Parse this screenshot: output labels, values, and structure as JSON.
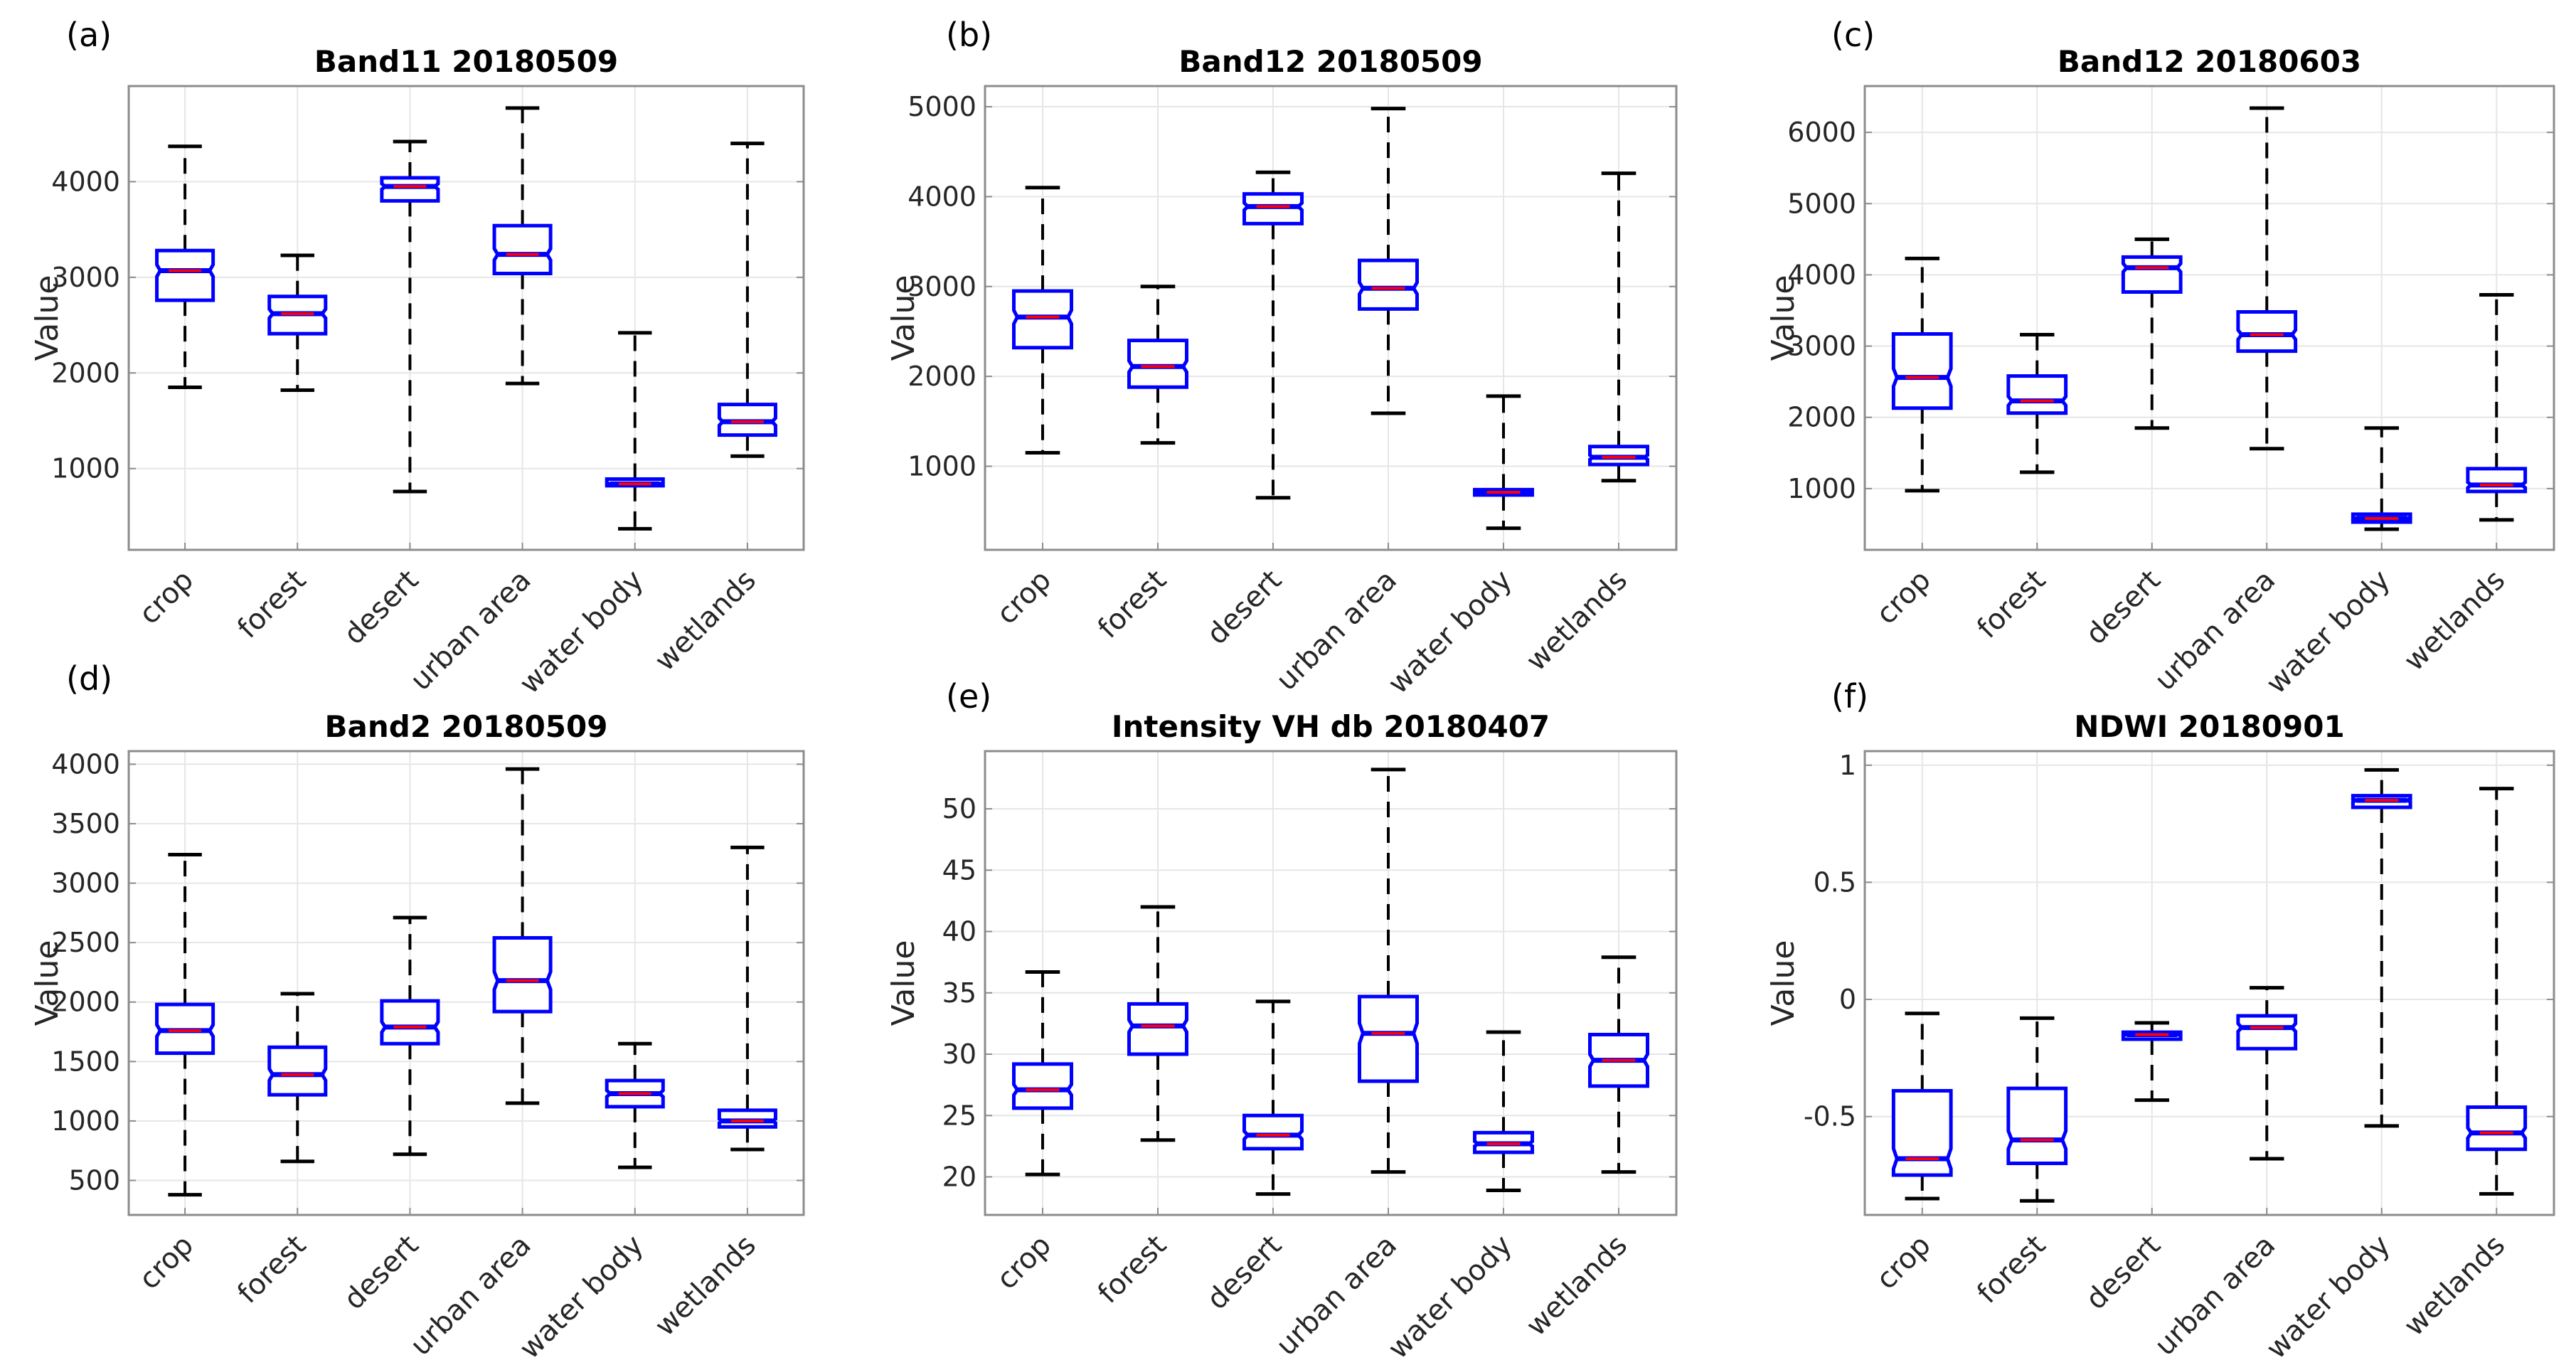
{
  "chart_data": [
    {
      "type": "box",
      "panel_label": "(a)",
      "title": "Band11 20180509",
      "ylabel": "Value",
      "ylim": [
        150,
        5000
      ],
      "yticks": [
        1000,
        2000,
        3000,
        4000
      ],
      "grid": true,
      "categories": [
        "crop",
        "forest",
        "desert",
        "urban area",
        "water body",
        "wetlands"
      ],
      "boxes": [
        {
          "whisker_low": 1850,
          "q1": 2760,
          "median": 3070,
          "q3": 3280,
          "whisker_high": 4370
        },
        {
          "whisker_low": 1820,
          "q1": 2410,
          "median": 2620,
          "q3": 2800,
          "whisker_high": 3230
        },
        {
          "whisker_low": 760,
          "q1": 3800,
          "median": 3950,
          "q3": 4040,
          "whisker_high": 4420
        },
        {
          "whisker_low": 1890,
          "q1": 3040,
          "median": 3240,
          "q3": 3540,
          "whisker_high": 4770
        },
        {
          "whisker_low": 370,
          "q1": 820,
          "median": 840,
          "q3": 890,
          "whisker_high": 2420
        },
        {
          "whisker_low": 1130,
          "q1": 1350,
          "median": 1490,
          "q3": 1670,
          "whisker_high": 4400
        }
      ]
    },
    {
      "type": "box",
      "panel_label": "(b)",
      "title": "Band12 20180509",
      "ylabel": "Value",
      "ylim": [
        70,
        5230
      ],
      "yticks": [
        1000,
        2000,
        3000,
        4000,
        5000
      ],
      "grid": true,
      "categories": [
        "crop",
        "forest",
        "desert",
        "urban area",
        "water body",
        "wetlands"
      ],
      "boxes": [
        {
          "whisker_low": 1150,
          "q1": 2320,
          "median": 2660,
          "q3": 2950,
          "whisker_high": 4100
        },
        {
          "whisker_low": 1260,
          "q1": 1880,
          "median": 2110,
          "q3": 2400,
          "whisker_high": 3000
        },
        {
          "whisker_low": 650,
          "q1": 3700,
          "median": 3890,
          "q3": 4030,
          "whisker_high": 4270
        },
        {
          "whisker_low": 1590,
          "q1": 2750,
          "median": 2980,
          "q3": 3290,
          "whisker_high": 4980
        },
        {
          "whisker_low": 310,
          "q1": 680,
          "median": 710,
          "q3": 740,
          "whisker_high": 1780
        },
        {
          "whisker_low": 840,
          "q1": 1020,
          "median": 1100,
          "q3": 1220,
          "whisker_high": 4260
        }
      ]
    },
    {
      "type": "box",
      "panel_label": "(c)",
      "title": "Band12 20180603",
      "ylabel": "Value",
      "ylim": [
        140,
        6650
      ],
      "yticks": [
        1000,
        2000,
        3000,
        4000,
        5000,
        6000
      ],
      "grid": true,
      "categories": [
        "crop",
        "forest",
        "desert",
        "urban area",
        "water body",
        "wetlands"
      ],
      "boxes": [
        {
          "whisker_low": 970,
          "q1": 2130,
          "median": 2560,
          "q3": 3170,
          "whisker_high": 4230
        },
        {
          "whisker_low": 1230,
          "q1": 2060,
          "median": 2230,
          "q3": 2580,
          "whisker_high": 3160
        },
        {
          "whisker_low": 1850,
          "q1": 3760,
          "median": 4100,
          "q3": 4250,
          "whisker_high": 4500
        },
        {
          "whisker_low": 1560,
          "q1": 2930,
          "median": 3160,
          "q3": 3480,
          "whisker_high": 6340
        },
        {
          "whisker_low": 430,
          "q1": 530,
          "median": 580,
          "q3": 640,
          "whisker_high": 1850
        },
        {
          "whisker_low": 560,
          "q1": 960,
          "median": 1050,
          "q3": 1280,
          "whisker_high": 3720
        }
      ]
    },
    {
      "type": "box",
      "panel_label": "(d)",
      "title": "Band2 20180509",
      "ylabel": "Value",
      "ylim": [
        210,
        4110
      ],
      "yticks": [
        500,
        1000,
        1500,
        2000,
        2500,
        3000,
        3500,
        4000
      ],
      "grid": true,
      "categories": [
        "crop",
        "forest",
        "desert",
        "urban area",
        "water body",
        "wetlands"
      ],
      "boxes": [
        {
          "whisker_low": 380,
          "q1": 1570,
          "median": 1760,
          "q3": 1980,
          "whisker_high": 3240
        },
        {
          "whisker_low": 660,
          "q1": 1220,
          "median": 1390,
          "q3": 1620,
          "whisker_high": 2070
        },
        {
          "whisker_low": 720,
          "q1": 1650,
          "median": 1790,
          "q3": 2010,
          "whisker_high": 2710
        },
        {
          "whisker_low": 1150,
          "q1": 1920,
          "median": 2180,
          "q3": 2540,
          "whisker_high": 3960
        },
        {
          "whisker_low": 610,
          "q1": 1120,
          "median": 1230,
          "q3": 1340,
          "whisker_high": 1650
        },
        {
          "whisker_low": 760,
          "q1": 950,
          "median": 1000,
          "q3": 1090,
          "whisker_high": 3300
        }
      ]
    },
    {
      "type": "box",
      "panel_label": "(e)",
      "title": "Intensity VH db 20180407",
      "ylabel": "Value",
      "ylim": [
        16.9,
        54.7
      ],
      "yticks": [
        20,
        25,
        30,
        35,
        40,
        45,
        50
      ],
      "grid": true,
      "categories": [
        "crop",
        "forest",
        "desert",
        "urban area",
        "water body",
        "wetlands"
      ],
      "boxes": [
        {
          "whisker_low": 20.2,
          "q1": 25.6,
          "median": 27.1,
          "q3": 29.2,
          "whisker_high": 36.7
        },
        {
          "whisker_low": 23.0,
          "q1": 30.0,
          "median": 32.3,
          "q3": 34.1,
          "whisker_high": 42.0
        },
        {
          "whisker_low": 18.6,
          "q1": 22.3,
          "median": 23.4,
          "q3": 25.0,
          "whisker_high": 34.3
        },
        {
          "whisker_low": 20.4,
          "q1": 27.8,
          "median": 31.7,
          "q3": 34.7,
          "whisker_high": 53.2
        },
        {
          "whisker_low": 18.9,
          "q1": 22.0,
          "median": 22.7,
          "q3": 23.6,
          "whisker_high": 31.8
        },
        {
          "whisker_low": 20.4,
          "q1": 27.4,
          "median": 29.5,
          "q3": 31.6,
          "whisker_high": 37.9
        }
      ]
    },
    {
      "type": "box",
      "panel_label": "(f)",
      "title": "NDWI 20180901",
      "ylabel": "Value",
      "ylim": [
        -0.92,
        1.06
      ],
      "yticks": [
        -0.5,
        0,
        0.5,
        1
      ],
      "grid": true,
      "categories": [
        "crop",
        "forest",
        "desert",
        "urban area",
        "water body",
        "wetlands"
      ],
      "boxes": [
        {
          "whisker_low": -0.85,
          "q1": -0.75,
          "median": -0.68,
          "q3": -0.39,
          "whisker_high": -0.06
        },
        {
          "whisker_low": -0.86,
          "q1": -0.7,
          "median": -0.6,
          "q3": -0.38,
          "whisker_high": -0.08
        },
        {
          "whisker_low": -0.43,
          "q1": -0.17,
          "median": -0.15,
          "q3": -0.14,
          "whisker_high": -0.1
        },
        {
          "whisker_low": -0.68,
          "q1": -0.21,
          "median": -0.12,
          "q3": -0.07,
          "whisker_high": 0.05
        },
        {
          "whisker_low": -0.54,
          "q1": 0.82,
          "median": 0.85,
          "q3": 0.87,
          "whisker_high": 0.98
        },
        {
          "whisker_low": -0.83,
          "q1": -0.64,
          "median": -0.57,
          "q3": -0.46,
          "whisker_high": 0.9
        }
      ]
    }
  ],
  "colors": {
    "box": "#0000ff",
    "median": "#ff0000",
    "whisker": "#000000",
    "grid": "#e6e6e6",
    "axis": "#8c8c8c"
  }
}
